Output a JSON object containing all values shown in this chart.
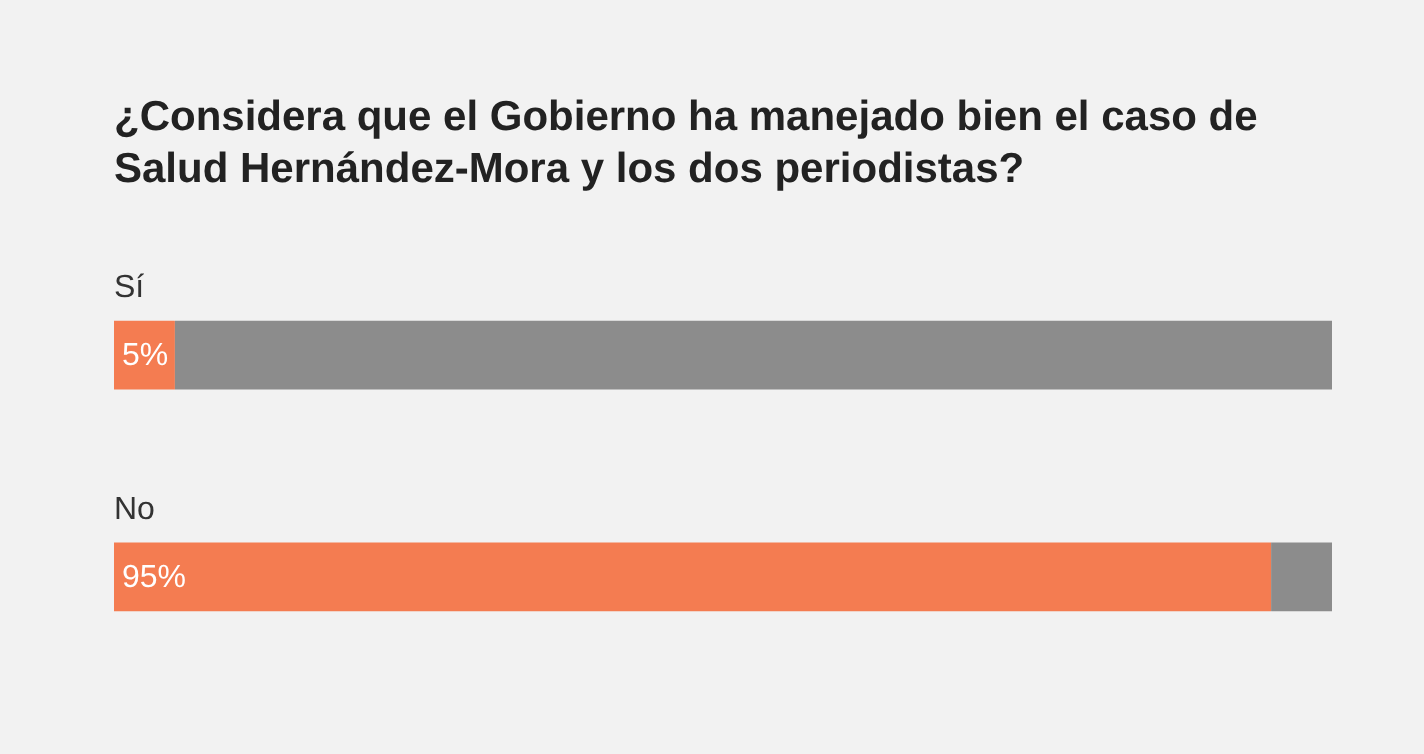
{
  "chart_data": {
    "type": "bar",
    "orientation": "horizontal",
    "stacked": true,
    "title": "¿Considera que el Gobierno ha manejado bien el caso de Salud Hernández-Mora y los dos periodistas?",
    "categories": [
      "Sí",
      "No"
    ],
    "series": [
      {
        "color": "#f47c51",
        "values": [
          5,
          95
        ],
        "value_labels": [
          "5%",
          "95%"
        ]
      },
      {
        "color": "#8c8c8c",
        "values": [
          95,
          5
        ]
      }
    ],
    "xlim": [
      0,
      100
    ]
  }
}
